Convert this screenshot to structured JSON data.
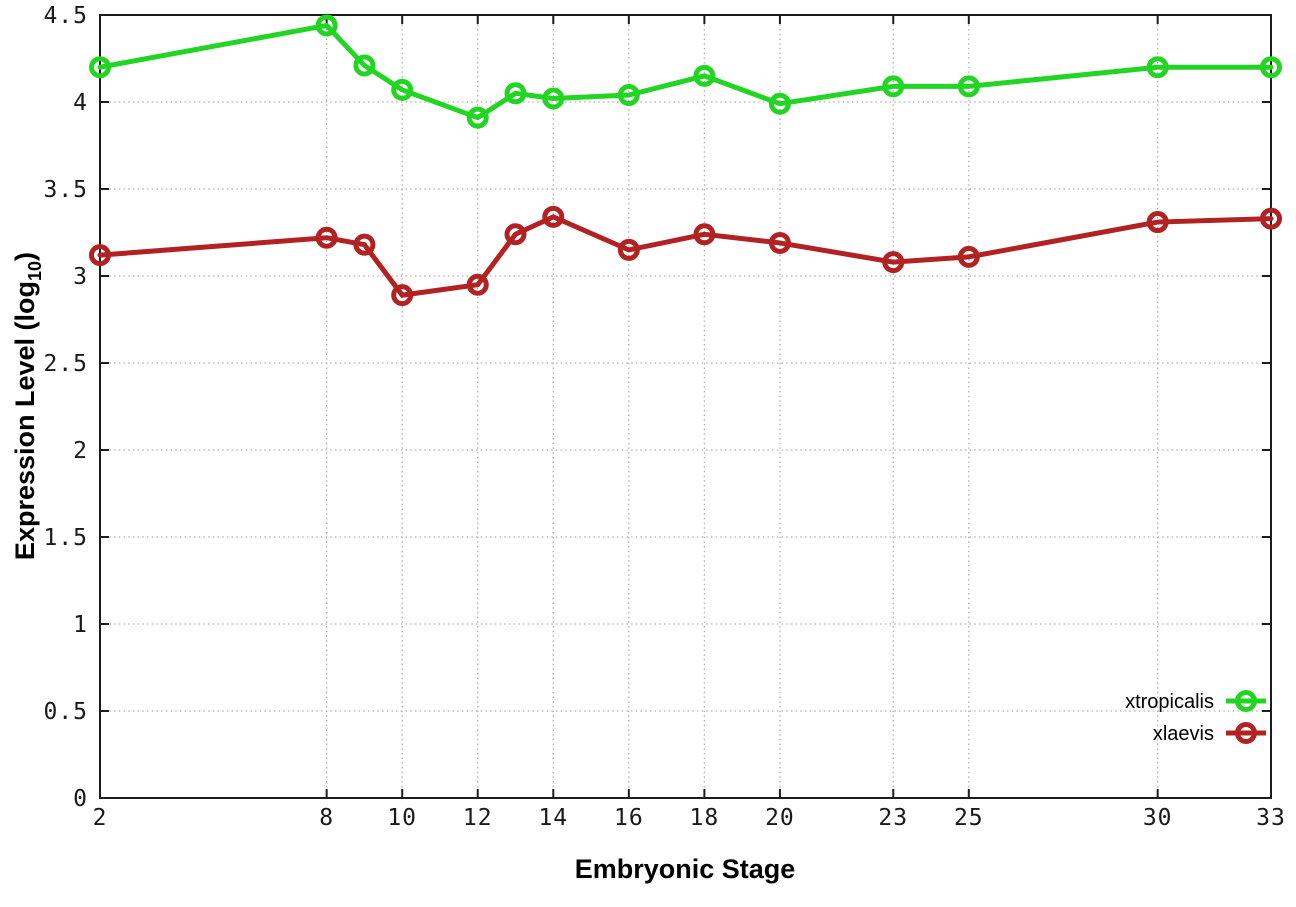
{
  "figure": {
    "background": "#ffffff",
    "xlabel": "Embryonic Stage",
    "ylabel_main": "Expression Level (log",
    "ylabel_sub": "10",
    "ylabel_close": ")"
  },
  "chart_data": {
    "type": "line",
    "title": "",
    "xlabel": "Embryonic Stage",
    "ylabel": "Expression Level (log10)",
    "x": [
      2,
      8,
      9,
      10,
      12,
      13,
      14,
      16,
      18,
      20,
      23,
      25,
      30,
      33
    ],
    "series": [
      {
        "name": "xtropicalis",
        "color": "#23D523",
        "values": [
          4.2,
          4.44,
          4.21,
          4.07,
          3.91,
          4.05,
          4.02,
          4.04,
          4.15,
          3.99,
          4.09,
          4.09,
          4.2,
          4.2
        ]
      },
      {
        "name": "xlaevis",
        "color": "#B22222",
        "values": [
          3.12,
          3.22,
          3.18,
          2.89,
          2.95,
          3.24,
          3.34,
          3.15,
          3.24,
          3.19,
          3.08,
          3.11,
          3.31,
          3.33
        ]
      }
    ],
    "x_ticks": [
      2,
      8,
      10,
      12,
      14,
      16,
      18,
      20,
      23,
      25,
      30,
      33
    ],
    "x_tick_labels": [
      "2",
      "8",
      "10",
      "12",
      "14",
      "16",
      "18",
      "20",
      "23",
      "25",
      "30",
      "33"
    ],
    "y_ticks": [
      0,
      0.5,
      1,
      1.5,
      2,
      2.5,
      3,
      3.5,
      4,
      4.5
    ],
    "y_tick_labels": [
      "0",
      "0.5",
      "1",
      "1.5",
      "2",
      "2.5",
      "3",
      "3.5",
      "4",
      "4.5"
    ],
    "xlim": [
      2,
      33
    ],
    "ylim": [
      0,
      4.5
    ],
    "grid": true,
    "legend_position": "bottom-right",
    "marker": "open-circle"
  },
  "style": {
    "grid_color": "#b0b0b0",
    "axis_color": "#1c1c1c",
    "tick_label_color": "#1a1a1a",
    "line_width": 5,
    "marker_radius": 8.5,
    "marker_stroke": 5
  }
}
